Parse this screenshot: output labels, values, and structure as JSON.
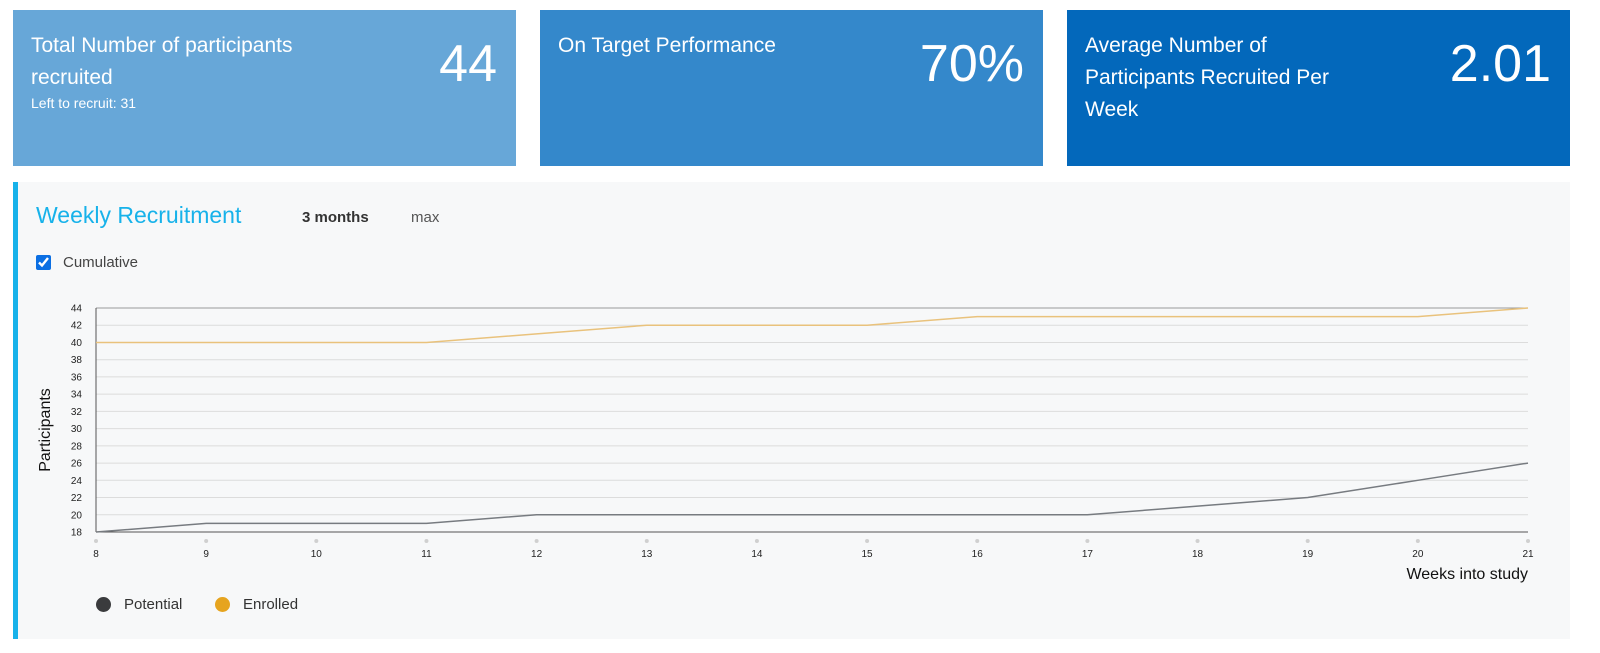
{
  "cards": [
    {
      "label": "Total Number of participants recruited",
      "value": "44",
      "sub": "Left to recruit: 31"
    },
    {
      "label": "On Target Performance",
      "value": "70%"
    },
    {
      "label": "Average Number of Participants Recruited Per Week",
      "value": "2.01"
    }
  ],
  "panel": {
    "title": "Weekly Recruitment",
    "range_options": [
      "3 months",
      "max"
    ],
    "selected_range": "3 months",
    "cumulative_label": "Cumulative",
    "cumulative_checked": true
  },
  "colors": {
    "card1": "#67a7d8",
    "card2": "#3488cb",
    "card3": "#0368bb",
    "accent": "#17b2ea",
    "potential": "#777b80",
    "enrolled": "#e9c27c",
    "potential_legend": "#3a3b3d",
    "enrolled_legend": "#e6a41f"
  },
  "chart_data": {
    "type": "line",
    "xlabel": "Weeks into study",
    "ylabel": "Participants",
    "x": [
      8,
      9,
      10,
      11,
      12,
      13,
      14,
      15,
      16,
      17,
      18,
      19,
      20,
      21
    ],
    "xlim": [
      8,
      21
    ],
    "ylim": [
      18,
      44
    ],
    "yticks": [
      18,
      20,
      22,
      24,
      26,
      28,
      30,
      32,
      34,
      36,
      38,
      40,
      42,
      44
    ],
    "grid": true,
    "legend_position": "bottom-left",
    "series": [
      {
        "name": "Potential",
        "values": [
          18,
          19,
          19,
          19,
          20,
          20,
          20,
          20,
          20,
          20,
          21,
          22,
          24,
          26
        ]
      },
      {
        "name": "Enrolled",
        "values": [
          40,
          40,
          40,
          40,
          41,
          42,
          42,
          42,
          43,
          43,
          43,
          43,
          43,
          44
        ]
      }
    ]
  }
}
